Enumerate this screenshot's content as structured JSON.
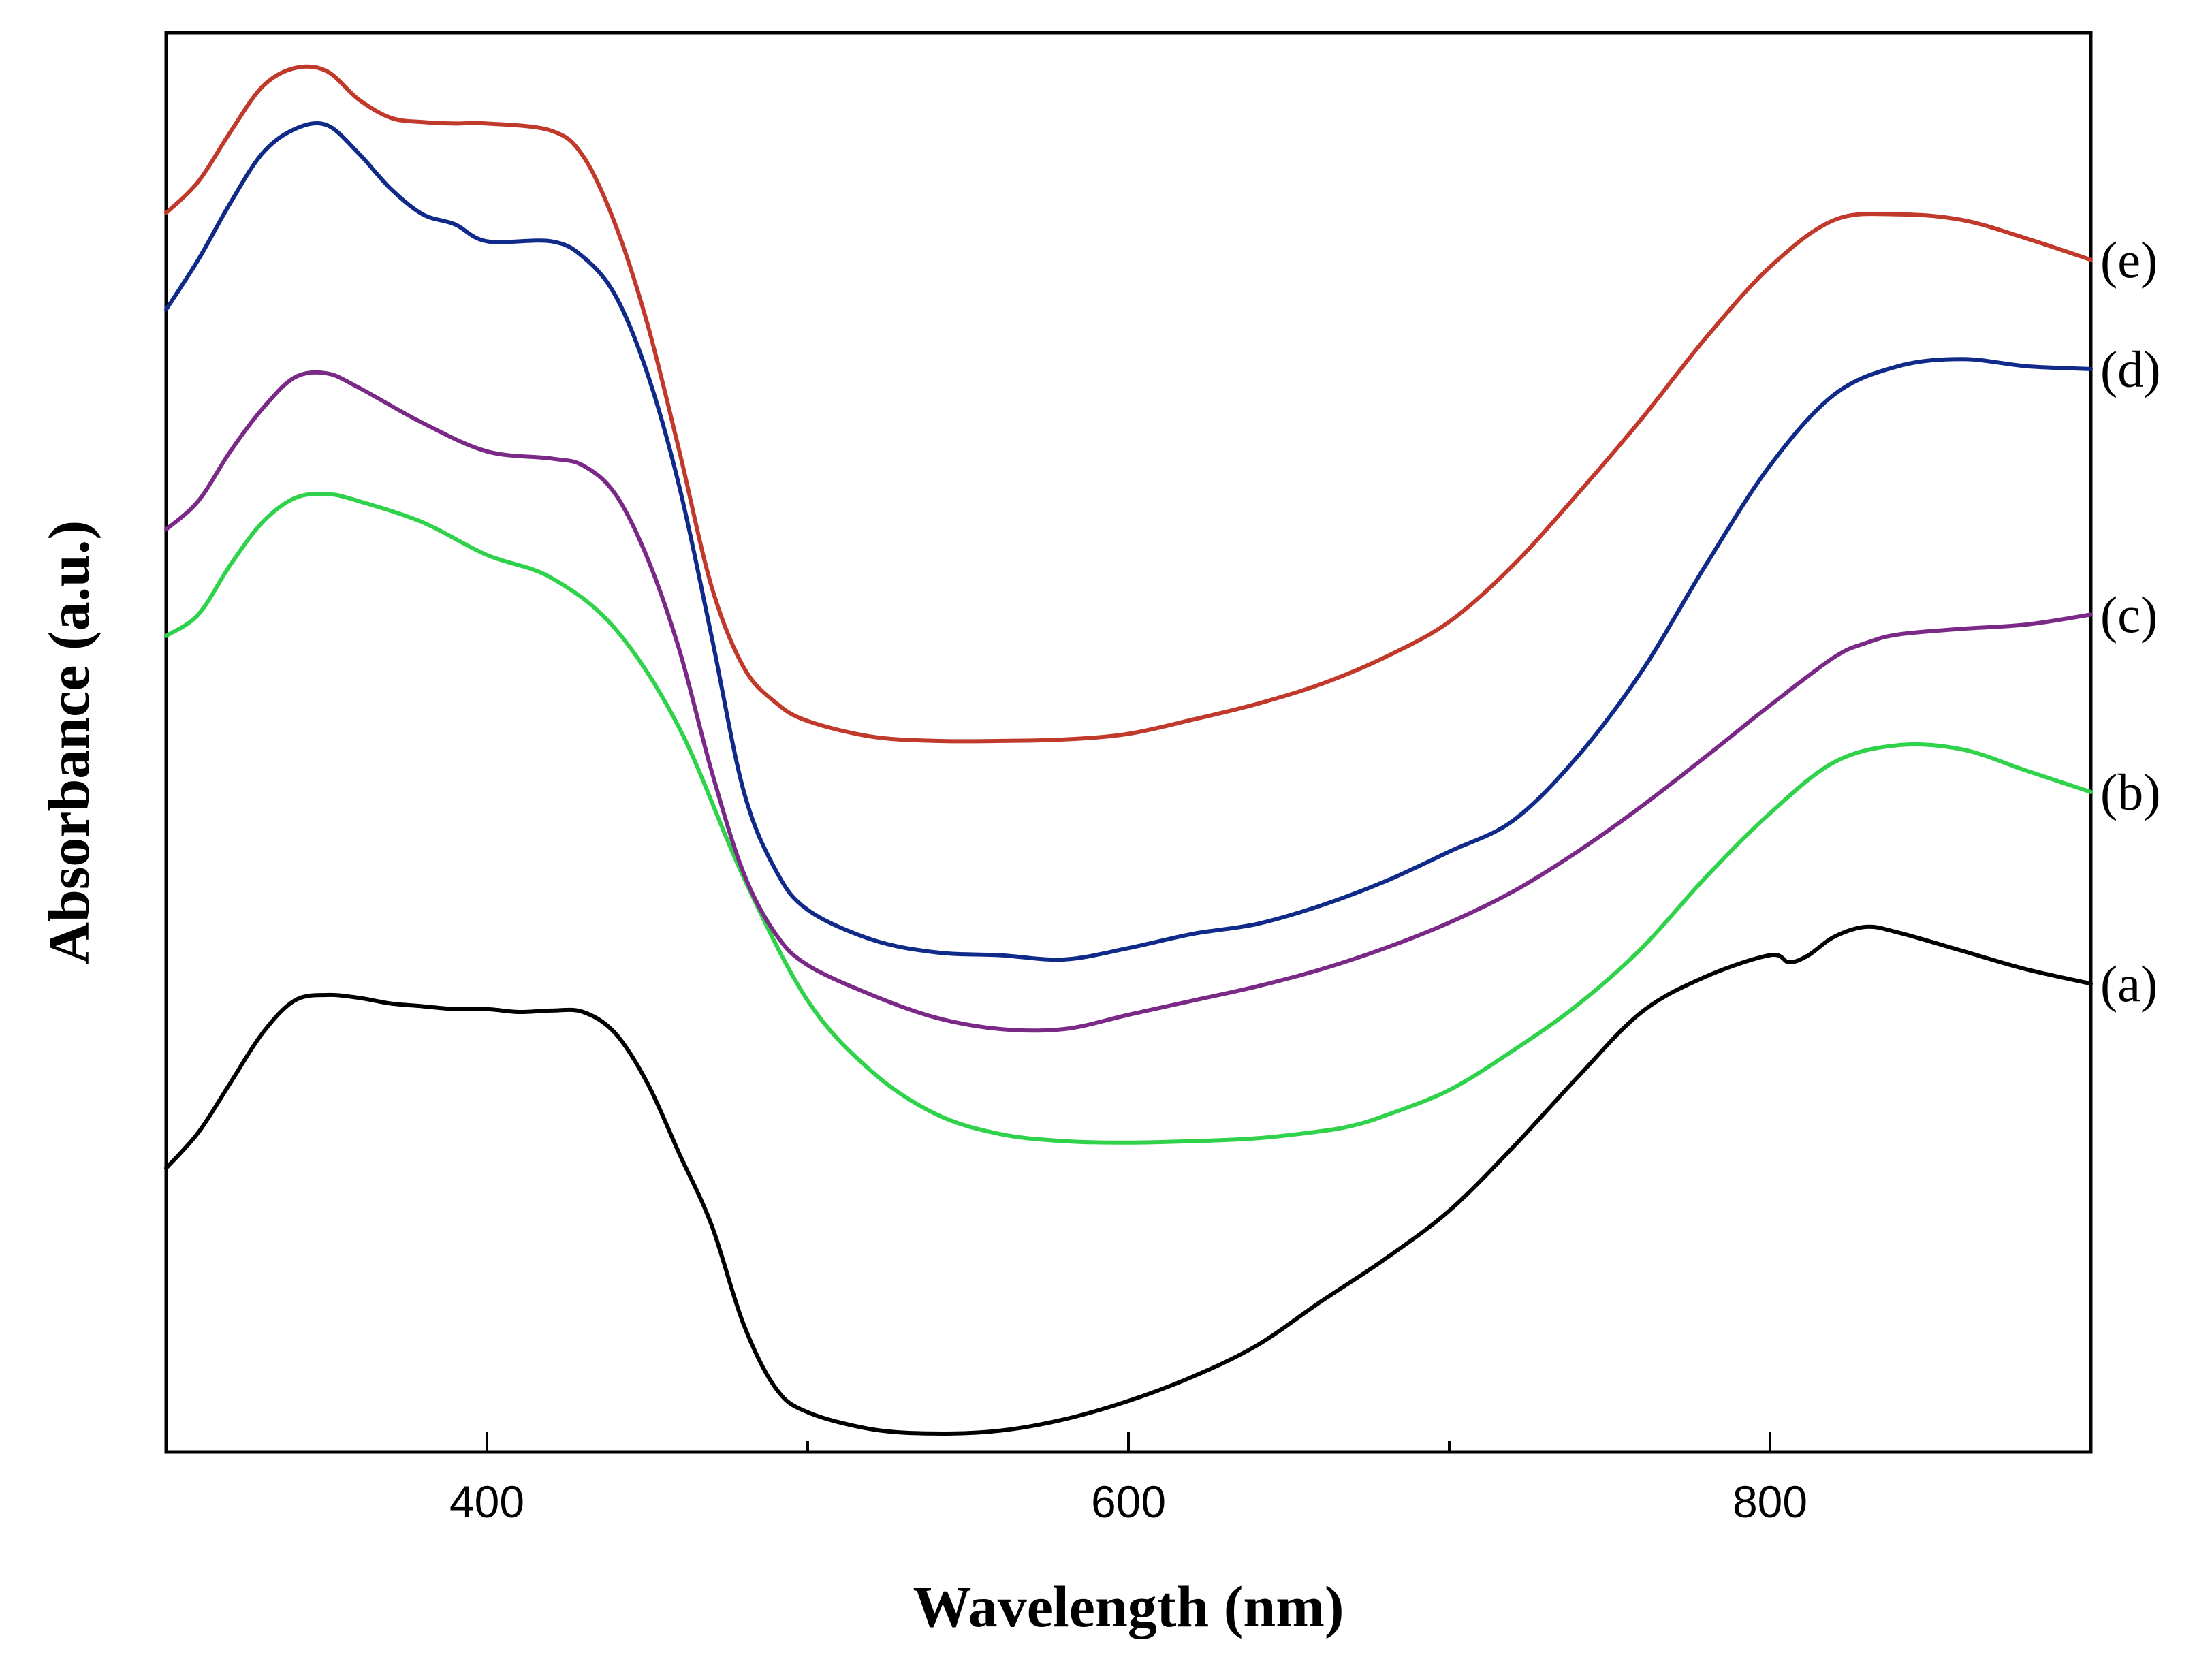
{
  "chart_data": {
    "type": "line",
    "title": "",
    "xlabel": "Wavelength (nm)",
    "ylabel": "Absorbance (a.u.)",
    "xlim": [
      300,
      900
    ],
    "ylim": [
      0,
      100
    ],
    "x_ticks_major": [
      400,
      600,
      800
    ],
    "x_ticks_minor": [
      500,
      700
    ],
    "y_ticks": [],
    "grid": false,
    "legend": "right, inline labels at line ends",
    "series": [
      {
        "name": "(a)",
        "color": "#000000",
        "x": [
          300,
          310,
          320,
          330,
          340,
          350,
          360,
          370,
          380,
          390,
          400,
          410,
          420,
          430,
          440,
          450,
          460,
          470,
          480,
          490,
          500,
          520,
          540,
          560,
          580,
          600,
          620,
          640,
          660,
          680,
          700,
          720,
          740,
          760,
          780,
          800,
          806,
          812,
          820,
          830,
          840,
          860,
          880,
          900
        ],
        "values": [
          20,
          22.5,
          26,
          29.5,
          31.8,
          32.2,
          32,
          31.6,
          31.4,
          31.2,
          31.2,
          31,
          31.1,
          31,
          29.5,
          26,
          21,
          16,
          9,
          4.5,
          2.8,
          1.6,
          1.3,
          1.5,
          2.3,
          3.6,
          5.3,
          7.5,
          10.6,
          13.6,
          17,
          21.5,
          26.4,
          31,
          33.5,
          35,
          34.5,
          35,
          36.3,
          37,
          36.6,
          35.3,
          34,
          33
        ]
      },
      {
        "name": "(b)",
        "color": "#2fd24a",
        "x": [
          300,
          310,
          320,
          330,
          340,
          350,
          360,
          380,
          400,
          420,
          440,
          460,
          480,
          500,
          520,
          540,
          560,
          580,
          600,
          620,
          640,
          660,
          670,
          680,
          700,
          720,
          740,
          760,
          780,
          800,
          820,
          840,
          860,
          880,
          900
        ],
        "values": [
          57.5,
          59,
          62.5,
          65.5,
          67.2,
          67.5,
          67,
          65.5,
          63.2,
          61.6,
          58,
          51,
          40.5,
          31.8,
          26.8,
          23.8,
          22.4,
          21.9,
          21.8,
          21.9,
          22.1,
          22.6,
          23,
          23.7,
          25.5,
          28.3,
          31.5,
          35.5,
          40.5,
          45,
          48.6,
          49.8,
          49.5,
          48,
          46.5
        ]
      },
      {
        "name": "(c)",
        "color": "#7a2a86",
        "x": [
          300,
          310,
          320,
          330,
          340,
          350,
          360,
          380,
          400,
          420,
          430,
          440,
          450,
          460,
          470,
          480,
          490,
          500,
          520,
          540,
          560,
          580,
          600,
          620,
          640,
          660,
          680,
          700,
          720,
          740,
          760,
          780,
          800,
          820,
          830,
          840,
          860,
          880,
          900
        ],
        "values": [
          65,
          67,
          70.5,
          73.5,
          75.7,
          76,
          75,
          72.5,
          70.5,
          70,
          69.5,
          67.5,
          63,
          56.5,
          48,
          40.8,
          36.5,
          34.3,
          32.2,
          30.6,
          29.8,
          29.8,
          30.8,
          31.8,
          32.8,
          34,
          35.5,
          37.3,
          39.5,
          42.3,
          45.5,
          49,
          52.6,
          56,
          57,
          57.6,
          58,
          58.3,
          59
        ]
      },
      {
        "name": "(d)",
        "color": "#102a8a",
        "x": [
          300,
          310,
          320,
          330,
          340,
          350,
          360,
          370,
          380,
          390,
          400,
          420,
          430,
          440,
          450,
          460,
          470,
          480,
          490,
          500,
          520,
          540,
          560,
          580,
          600,
          620,
          640,
          660,
          680,
          700,
          720,
          740,
          760,
          780,
          800,
          820,
          840,
          860,
          880,
          900
        ],
        "values": [
          80.5,
          84,
          88,
          91.5,
          93.2,
          93.5,
          91.5,
          89,
          87.2,
          86.5,
          85.3,
          85.3,
          84.2,
          81.5,
          76,
          68,
          57.5,
          46.6,
          41,
          38.2,
          36.1,
          35.2,
          35,
          34.7,
          35.5,
          36.5,
          37.2,
          38.5,
          40.2,
          42.3,
          44.5,
          49,
          55,
          62.5,
          69.5,
          74.5,
          76.5,
          77,
          76.5,
          76.3
        ]
      },
      {
        "name": "(e)",
        "color": "#c0392b",
        "x": [
          300,
          310,
          320,
          330,
          340,
          350,
          360,
          370,
          380,
          390,
          400,
          420,
          430,
          440,
          450,
          460,
          470,
          480,
          490,
          500,
          520,
          540,
          560,
          580,
          600,
          620,
          640,
          660,
          680,
          700,
          720,
          740,
          760,
          780,
          800,
          820,
          840,
          860,
          880,
          900
        ],
        "values": [
          87.3,
          89.5,
          93,
          96.2,
          97.5,
          97.3,
          95.3,
          94,
          93.7,
          93.6,
          93.6,
          93.1,
          91.3,
          86.5,
          79.5,
          70.5,
          61,
          55.3,
          52.8,
          51.5,
          50.4,
          50.1,
          50.1,
          50.2,
          50.6,
          51.6,
          52.7,
          54.1,
          56,
          58.5,
          62.5,
          67.5,
          72.8,
          78.5,
          83.5,
          86.8,
          87.2,
          86.8,
          85.5,
          84
        ]
      }
    ]
  }
}
